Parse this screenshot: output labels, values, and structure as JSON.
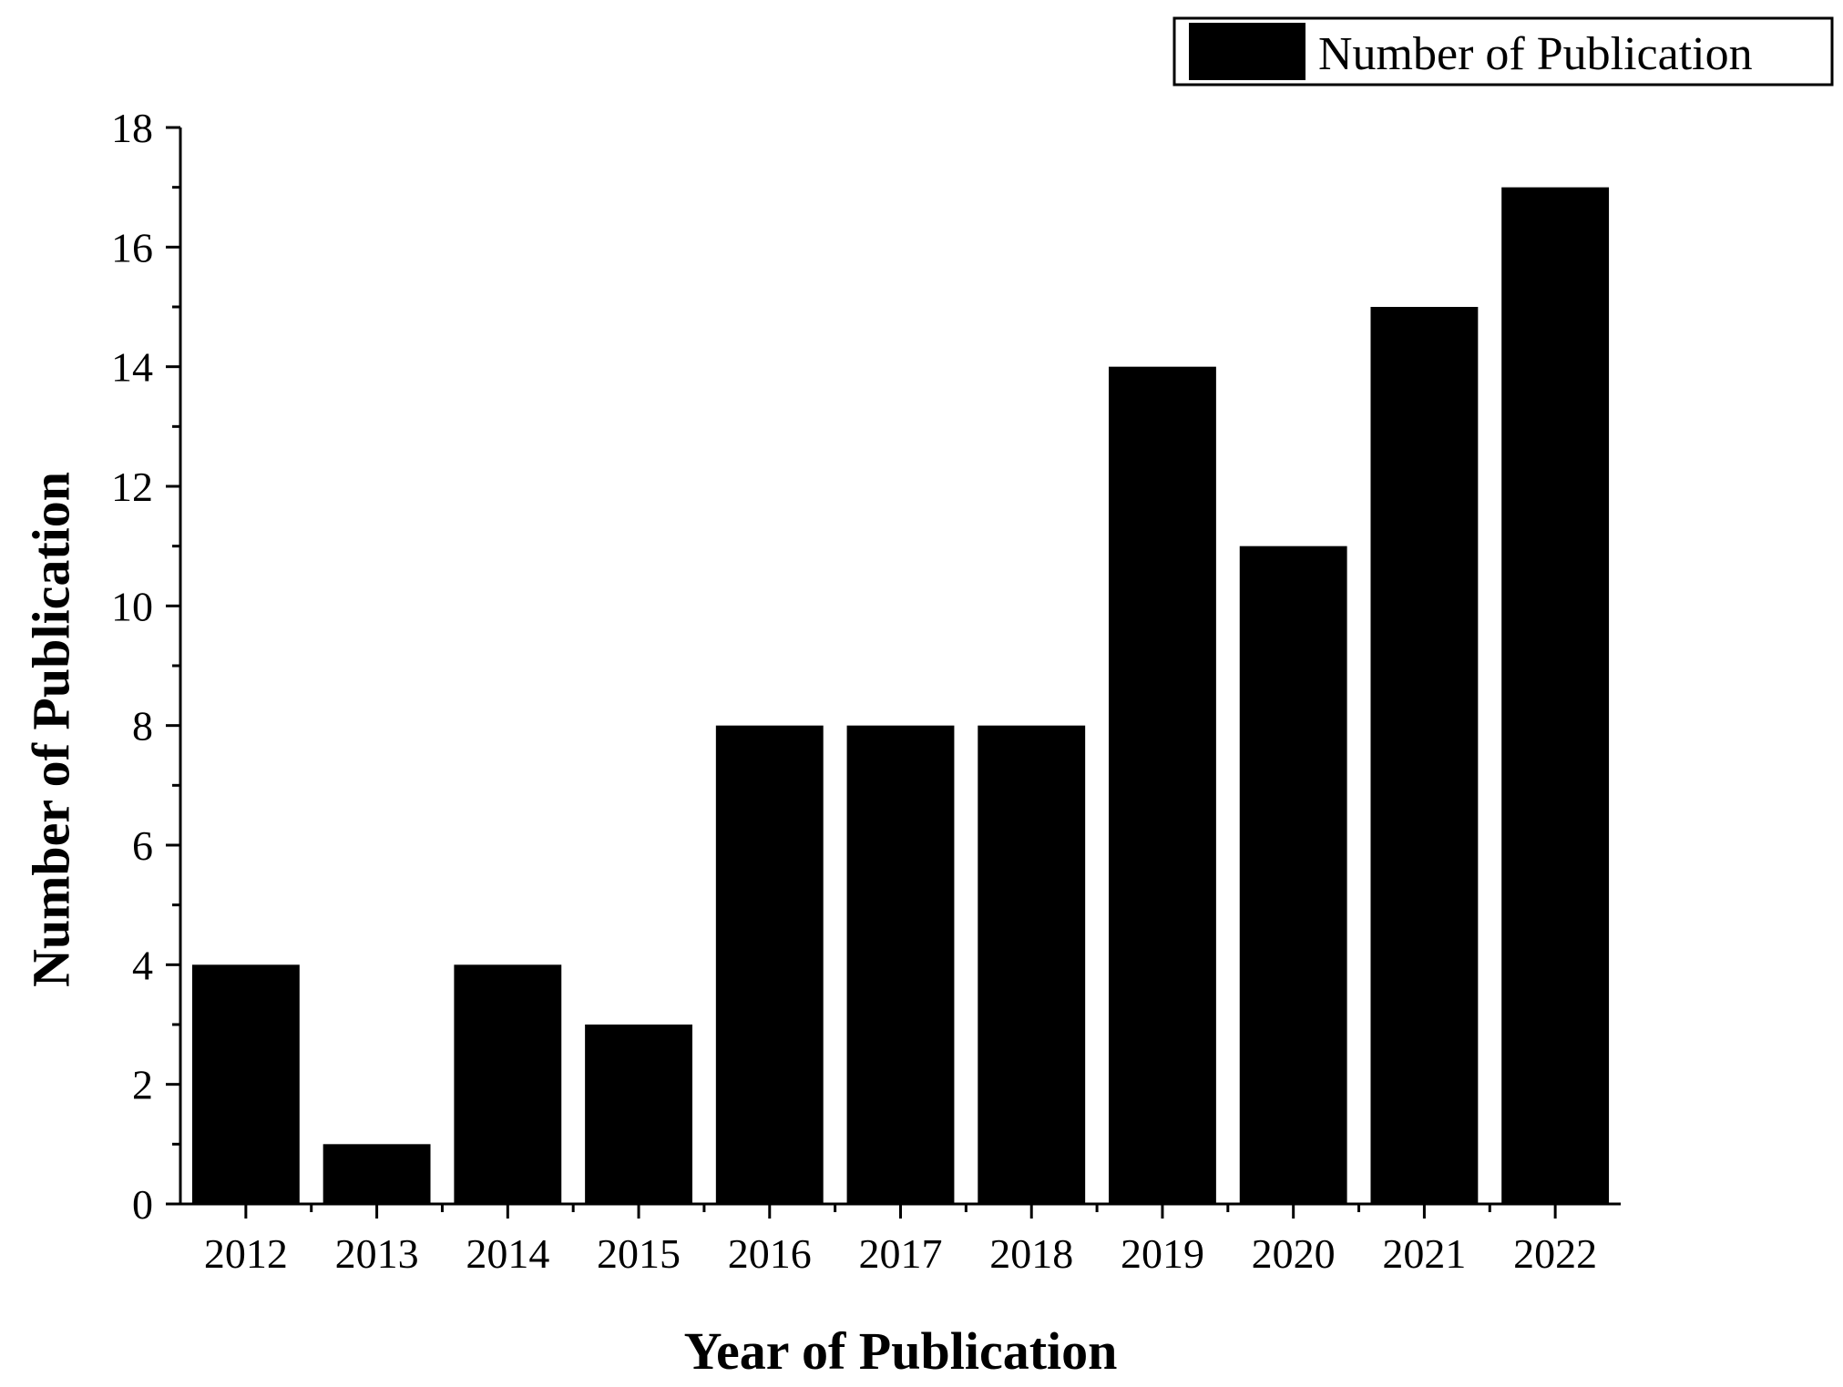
{
  "chart_data": {
    "type": "bar",
    "title": "",
    "xlabel": "Year of Publication",
    "ylabel": "Number of Publication",
    "categories": [
      "2012",
      "2013",
      "2014",
      "2015",
      "2016",
      "2017",
      "2018",
      "2019",
      "2020",
      "2021",
      "2022"
    ],
    "series": [
      {
        "name": "Number of Publication",
        "values": [
          4,
          1,
          4,
          3,
          8,
          8,
          8,
          14,
          11,
          15,
          17
        ],
        "color": "#000000"
      }
    ],
    "ylim": [
      0,
      18
    ],
    "yticks": [
      "0",
      "2",
      "4",
      "6",
      "8",
      "10",
      "12",
      "14",
      "16",
      "18"
    ],
    "grid": false,
    "legend_position": "top-right"
  }
}
